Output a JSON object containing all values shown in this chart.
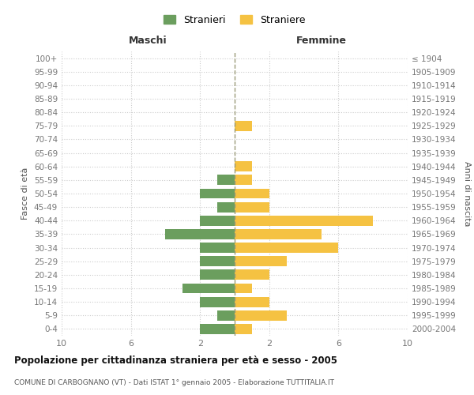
{
  "age_groups": [
    "0-4",
    "5-9",
    "10-14",
    "15-19",
    "20-24",
    "25-29",
    "30-34",
    "35-39",
    "40-44",
    "45-49",
    "50-54",
    "55-59",
    "60-64",
    "65-69",
    "70-74",
    "75-79",
    "80-84",
    "85-89",
    "90-94",
    "95-99",
    "100+"
  ],
  "birth_years": [
    "2000-2004",
    "1995-1999",
    "1990-1994",
    "1985-1989",
    "1980-1984",
    "1975-1979",
    "1970-1974",
    "1965-1969",
    "1960-1964",
    "1955-1959",
    "1950-1954",
    "1945-1949",
    "1940-1944",
    "1935-1939",
    "1930-1934",
    "1925-1929",
    "1920-1924",
    "1915-1919",
    "1910-1914",
    "1905-1909",
    "≤ 1904"
  ],
  "males": [
    2,
    1,
    2,
    3,
    2,
    2,
    2,
    4,
    2,
    1,
    2,
    1,
    0,
    0,
    0,
    0,
    0,
    0,
    0,
    0,
    0
  ],
  "females": [
    1,
    3,
    2,
    1,
    2,
    3,
    6,
    5,
    8,
    2,
    2,
    1,
    1,
    0,
    0,
    1,
    0,
    0,
    0,
    0,
    0
  ],
  "male_color": "#6b9e5e",
  "female_color": "#f5c242",
  "title": "Popolazione per cittadinanza straniera per età e sesso - 2005",
  "subtitle": "COMUNE DI CARBOGNANO (VT) - Dati ISTAT 1° gennaio 2005 - Elaborazione TUTTITALIA.IT",
  "header_left": "Maschi",
  "header_right": "Femmine",
  "ylabel_left": "Fasce di età",
  "ylabel_right": "Anni di nascita",
  "legend_stranieri": "Stranieri",
  "legend_straniere": "Straniere",
  "xlim": 10,
  "background_color": "#ffffff",
  "grid_color": "#cccccc",
  "bar_height": 0.75,
  "xtick_positions": [
    -10,
    -6,
    -2,
    2,
    6,
    10
  ],
  "xtick_labels": [
    "10",
    "6",
    "2",
    "2",
    "6",
    "10"
  ]
}
